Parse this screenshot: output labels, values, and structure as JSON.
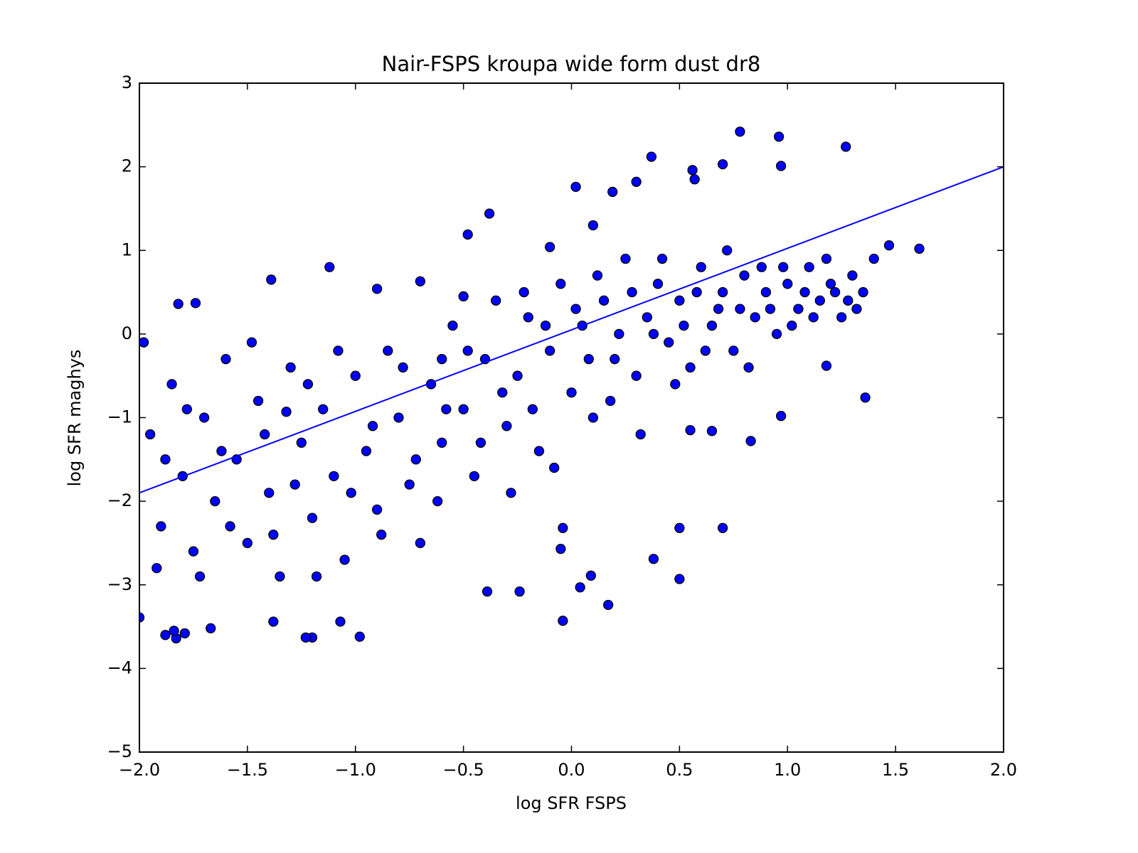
{
  "chart_data": {
    "type": "scatter",
    "title": "Nair-FSPS kroupa wide form dust dr8",
    "x_label": "log SFR FSPS",
    "y_label": "log SFR maghys",
    "xlim": [
      -2,
      2
    ],
    "ylim": [
      -5,
      3
    ],
    "xticks": [
      {
        "value": -2,
        "label": "−2.0"
      },
      {
        "value": -1.5,
        "label": "−1.5"
      },
      {
        "value": -1,
        "label": "−1.0"
      },
      {
        "value": -0.5,
        "label": "−0.5"
      },
      {
        "value": 0,
        "label": "0.0"
      },
      0.5,
      {
        "value": 1,
        "label": "1.0"
      },
      1.5,
      {
        "value": 2,
        "label": "2.0"
      }
    ],
    "yticks": [
      {
        "value": -5,
        "label": "−5"
      },
      {
        "value": -4,
        "label": "−4"
      },
      {
        "value": -3,
        "label": "−3"
      },
      {
        "value": -2,
        "label": "−2"
      },
      {
        "value": -1,
        "label": "−1"
      },
      0,
      1,
      2,
      3
    ],
    "series": [
      {
        "color": "#0000ff",
        "x": [
          0.78,
          0.96,
          1.27,
          0.37,
          0.97,
          0.7,
          0.56,
          1.61,
          1.47,
          1.36,
          1.18,
          0.97,
          0.83,
          0.65,
          0.55,
          0.7,
          0.5,
          0.5,
          0.38,
          0.17,
          -0.04,
          0.04,
          0.09,
          -0.05,
          -0.04,
          -0.39,
          -0.24,
          -0.98,
          -1.07,
          -1.2,
          -1.23,
          -1.83,
          -1.84,
          -1.88,
          -1.79,
          -1.67,
          -1.38,
          -2,
          -1.32,
          -1.12,
          -0.48,
          -0.38,
          -1.39,
          -1.82,
          -1.74,
          -0.1,
          0.02,
          0.19,
          0.3,
          0.57,
          -1.95,
          -1.9,
          -1.85,
          -1.8,
          -1.75,
          -1.7,
          -1.65,
          -1.6,
          -1.55,
          -1.5,
          -1.45,
          -1.4,
          -1.35,
          -1.3,
          -1.25,
          -1.2,
          -1.15,
          -1.1,
          -1.05,
          -1.0,
          -0.95,
          -0.9,
          -0.85,
          -0.8,
          -0.75,
          -0.7,
          -0.65,
          -0.6,
          -0.55,
          -0.5,
          -0.45,
          -0.4,
          -0.35,
          -0.3,
          -0.25,
          -0.2,
          -0.15,
          -0.1,
          -0.05,
          0.0,
          0.05,
          0.1,
          0.15,
          0.2,
          0.25,
          0.3,
          0.35,
          0.4,
          0.45,
          0.5,
          0.55,
          0.6,
          0.65,
          0.7,
          0.75,
          0.8,
          0.85,
          0.9,
          0.95,
          1.0,
          1.05,
          1.1,
          1.15,
          1.2,
          1.25,
          1.3,
          1.35,
          1.4,
          -1.98,
          -1.92,
          -1.88,
          -1.78,
          -1.72,
          -1.62,
          -1.58,
          -1.48,
          -1.42,
          -1.38,
          -1.28,
          -1.22,
          -1.18,
          -1.08,
          -1.02,
          -0.92,
          -0.88,
          -0.78,
          -0.72,
          -0.62,
          -0.58,
          -0.48,
          -0.42,
          -0.32,
          -0.28,
          -0.22,
          -0.18,
          -0.12,
          -0.08,
          0.02,
          0.08,
          0.12,
          0.18,
          0.22,
          0.28,
          0.32,
          0.38,
          0.42,
          0.48,
          0.52,
          0.58,
          0.62,
          0.68,
          0.72,
          0.78,
          0.82,
          0.88,
          0.92,
          0.98,
          1.02,
          1.08,
          1.12,
          1.18,
          1.22,
          1.28,
          1.32,
          -0.6,
          -0.7,
          -0.9,
          0.1,
          -0.5
        ],
        "values": [
          2.42,
          2.36,
          2.24,
          2.12,
          2.01,
          2.03,
          1.96,
          1.02,
          1.06,
          -0.76,
          -0.38,
          -0.98,
          -1.28,
          -1.16,
          -1.15,
          -2.32,
          -2.32,
          -2.93,
          -2.69,
          -3.24,
          -3.43,
          -3.03,
          -2.89,
          -2.57,
          -2.32,
          -3.08,
          -3.08,
          -3.62,
          -3.44,
          -3.63,
          -3.63,
          -3.64,
          -3.55,
          -3.6,
          -3.58,
          -3.52,
          -3.44,
          -3.39,
          -0.93,
          0.8,
          1.19,
          1.44,
          0.65,
          0.36,
          0.37,
          1.04,
          1.76,
          1.7,
          1.82,
          1.85,
          -1.2,
          -2.3,
          -0.6,
          -1.7,
          -2.6,
          -1.0,
          -2.0,
          -0.3,
          -1.5,
          -2.5,
          -0.8,
          -1.9,
          -2.9,
          -0.4,
          -1.3,
          -2.2,
          -0.9,
          -1.7,
          -2.7,
          -0.5,
          -1.4,
          -2.1,
          -0.2,
          -1.0,
          -1.8,
          -2.5,
          -0.6,
          -1.3,
          0.1,
          -0.9,
          -1.7,
          -0.3,
          0.4,
          -1.1,
          -0.5,
          0.2,
          -1.4,
          -0.2,
          0.6,
          -0.7,
          0.1,
          -1.0,
          0.4,
          -0.3,
          0.9,
          -0.5,
          0.2,
          0.6,
          -0.1,
          0.4,
          -0.4,
          0.8,
          0.1,
          0.5,
          -0.2,
          0.7,
          0.2,
          0.5,
          0.0,
          0.6,
          0.3,
          0.8,
          0.4,
          0.6,
          0.2,
          0.7,
          0.5,
          0.9,
          -0.1,
          -2.8,
          -1.5,
          -0.9,
          -2.9,
          -1.4,
          -2.3,
          -0.1,
          -1.2,
          -2.4,
          -1.8,
          -0.6,
          -2.9,
          -0.2,
          -1.9,
          -1.1,
          -2.4,
          -0.4,
          -1.5,
          -2.0,
          -0.9,
          -0.2,
          -1.3,
          -0.7,
          -1.9,
          0.5,
          -0.9,
          0.1,
          -1.6,
          0.3,
          -0.3,
          0.7,
          -0.8,
          0.0,
          0.5,
          -1.2,
          0.0,
          0.9,
          -0.6,
          0.1,
          0.5,
          -0.2,
          0.3,
          1.0,
          0.3,
          -0.4,
          0.8,
          0.3,
          0.8,
          0.1,
          0.5,
          0.2,
          0.9,
          0.5,
          0.4,
          0.3,
          -0.3,
          0.63,
          0.54,
          1.3,
          0.45
        ]
      }
    ],
    "line": {
      "color": "#0000ff",
      "x": [
        -2,
        2
      ],
      "values": [
        -1.9,
        2.0
      ]
    }
  }
}
